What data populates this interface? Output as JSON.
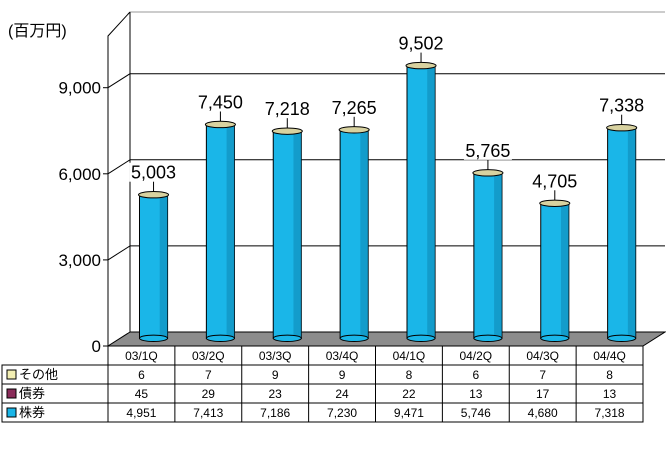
{
  "chart_data": {
    "type": "bar",
    "unit_label": "(百万円)",
    "categories": [
      "03/1Q",
      "03/2Q",
      "03/3Q",
      "03/4Q",
      "04/1Q",
      "04/2Q",
      "04/3Q",
      "04/4Q"
    ],
    "totals": [
      5003,
      7450,
      7218,
      7265,
      9502,
      5765,
      4705,
      7338
    ],
    "total_labels": [
      "5,003",
      "7,450",
      "7,218",
      "7,265",
      "9,502",
      "5,765",
      "4,705",
      "7,338"
    ],
    "series": [
      {
        "name": "その他",
        "color": "#f3efb3",
        "values": [
          6,
          7,
          9,
          9,
          8,
          6,
          7,
          8
        ],
        "labels": [
          "6",
          "7",
          "9",
          "9",
          "8",
          "6",
          "7",
          "8"
        ]
      },
      {
        "name": "債券",
        "color": "#8a2c5a",
        "values": [
          45,
          29,
          23,
          24,
          22,
          13,
          17,
          13
        ],
        "labels": [
          "45",
          "29",
          "23",
          "24",
          "22",
          "13",
          "17",
          "13"
        ]
      },
      {
        "name": "株券",
        "color": "#1ab6e8",
        "values": [
          4951,
          7413,
          7186,
          7230,
          9471,
          5746,
          4680,
          7318
        ],
        "labels": [
          "4,951",
          "7,413",
          "7,186",
          "7,230",
          "9,471",
          "5,746",
          "4,680",
          "7,318"
        ]
      }
    ],
    "yaxis": {
      "ticks": [
        0,
        3000,
        6000,
        9000
      ],
      "tick_labels": [
        "0",
        "3,000",
        "6,000",
        "9,000"
      ],
      "ylim": [
        0,
        10000
      ]
    },
    "grid": true,
    "legend": "data-table-below",
    "colors": {
      "bar": "#1ab6e8",
      "bar_dark": "#0e86b3",
      "bar_top": "#d8d2a0",
      "floor": "#8c8c8c",
      "grid": "#000000"
    }
  }
}
